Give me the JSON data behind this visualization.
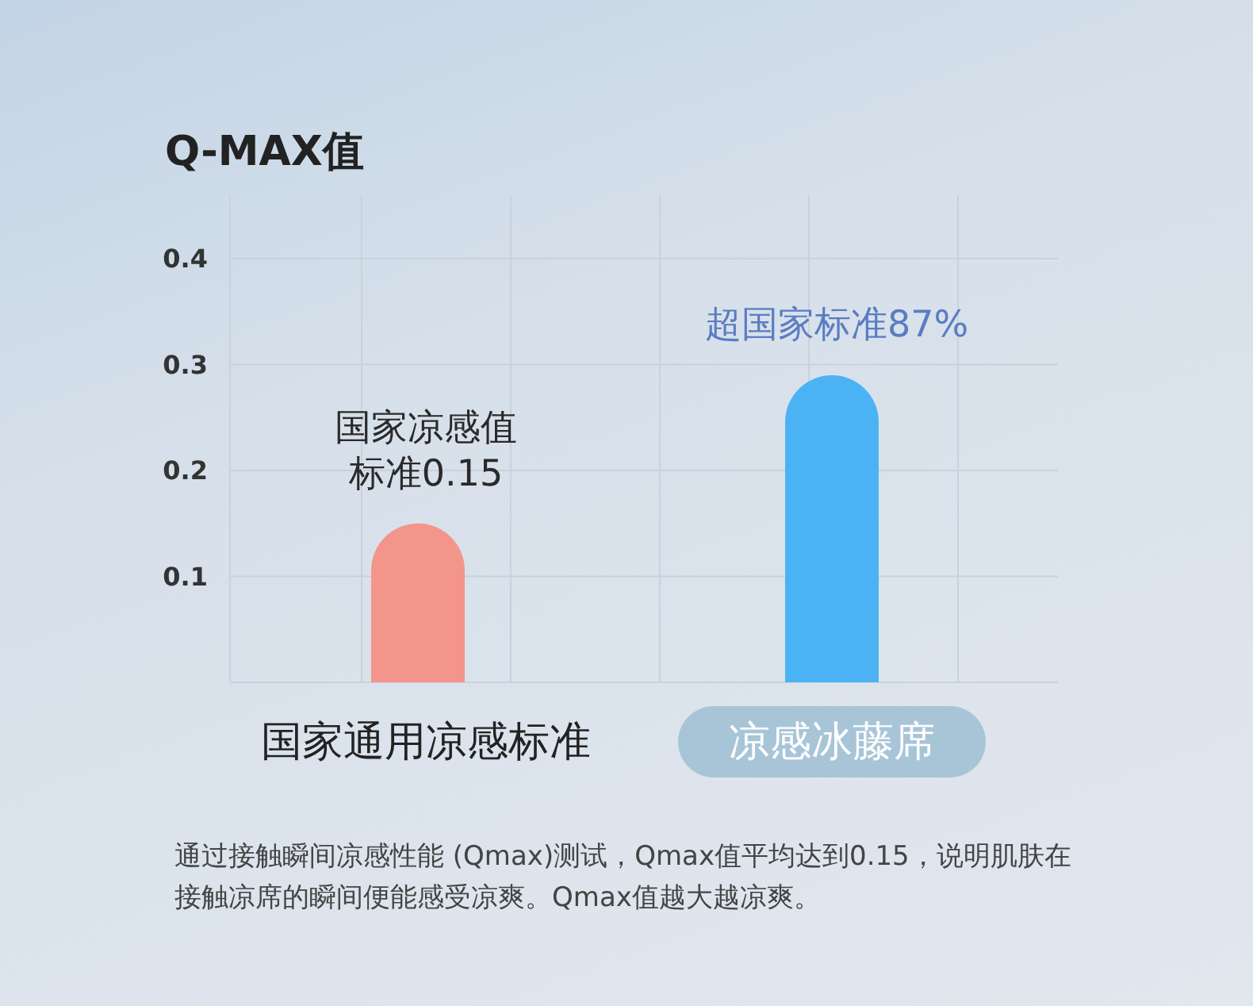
{
  "chart_data": {
    "type": "bar",
    "title": "Q-MAX值",
    "categories": [
      "国家通用凉感标准",
      "凉感冰藤席"
    ],
    "values": [
      0.15,
      0.29
    ],
    "colors": [
      "#f4958c",
      "#4bb3f3"
    ],
    "ylim": [
      0,
      0.46
    ],
    "yticks": [
      0.1,
      0.2,
      0.3,
      0.4
    ],
    "grid": true,
    "annotations": [
      {
        "text": "国家凉感值标准0.15",
        "x": "国家通用凉感标准",
        "y": 0.15
      },
      {
        "text": "超国家标准87%",
        "x": "凉感冰藤席",
        "y": 0.29
      },
      "通过接触瞬间凉感性能 (Qmax)测试，Qmax值平均达到0.15，说明肌肤在接触凉席的瞬间便能感受凉爽。Qmax值越大越凉爽。"
    ]
  }
}
